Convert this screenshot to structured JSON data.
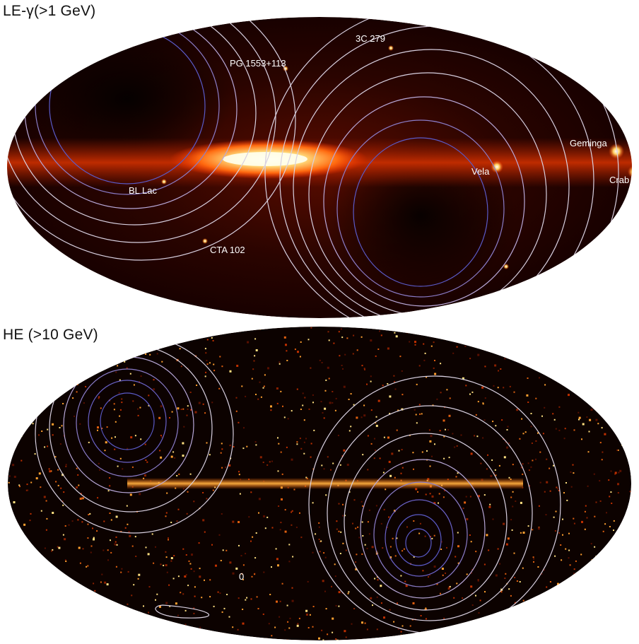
{
  "panels": [
    {
      "title": "LE-γ(>1 GeV)",
      "sources": [
        {
          "name": "3C 279"
        },
        {
          "name": "PG 1553+113"
        },
        {
          "name": "Geminga"
        },
        {
          "name": "Vela"
        },
        {
          "name": "Crab"
        },
        {
          "name": "BL Lac"
        },
        {
          "name": "CTA 102"
        }
      ]
    },
    {
      "title": "HE (>10 GeV)",
      "sources": [],
      "annotation": "0"
    }
  ],
  "colors": {
    "background": "#ffffff",
    "sky": "#0a0000",
    "plane_hot": "#ffffcc",
    "plane_warm": "#ff7a10",
    "contour_outer": "#d8d0e0",
    "contour_inner": "#5a5ac8"
  }
}
